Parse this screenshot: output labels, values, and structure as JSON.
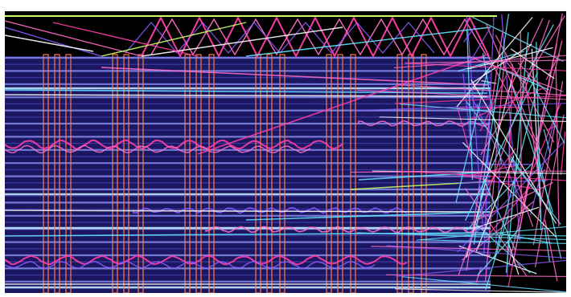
{
  "visualization": {
    "colors": {
      "background": "#000000",
      "frame": "#ffffff",
      "panel": "#1b1760",
      "stripe_light": "#7f84e8",
      "stripe_dark": "#3d3aa8",
      "highlight": "#bfe6ff",
      "cyan": "#66e6ff",
      "magenta": "#ff3fa8",
      "pink": "#ff6ec7",
      "violet": "#8b5cff",
      "orange": "#ff7a4a",
      "lime": "#c8ff6a",
      "white": "#ffffff"
    }
  }
}
